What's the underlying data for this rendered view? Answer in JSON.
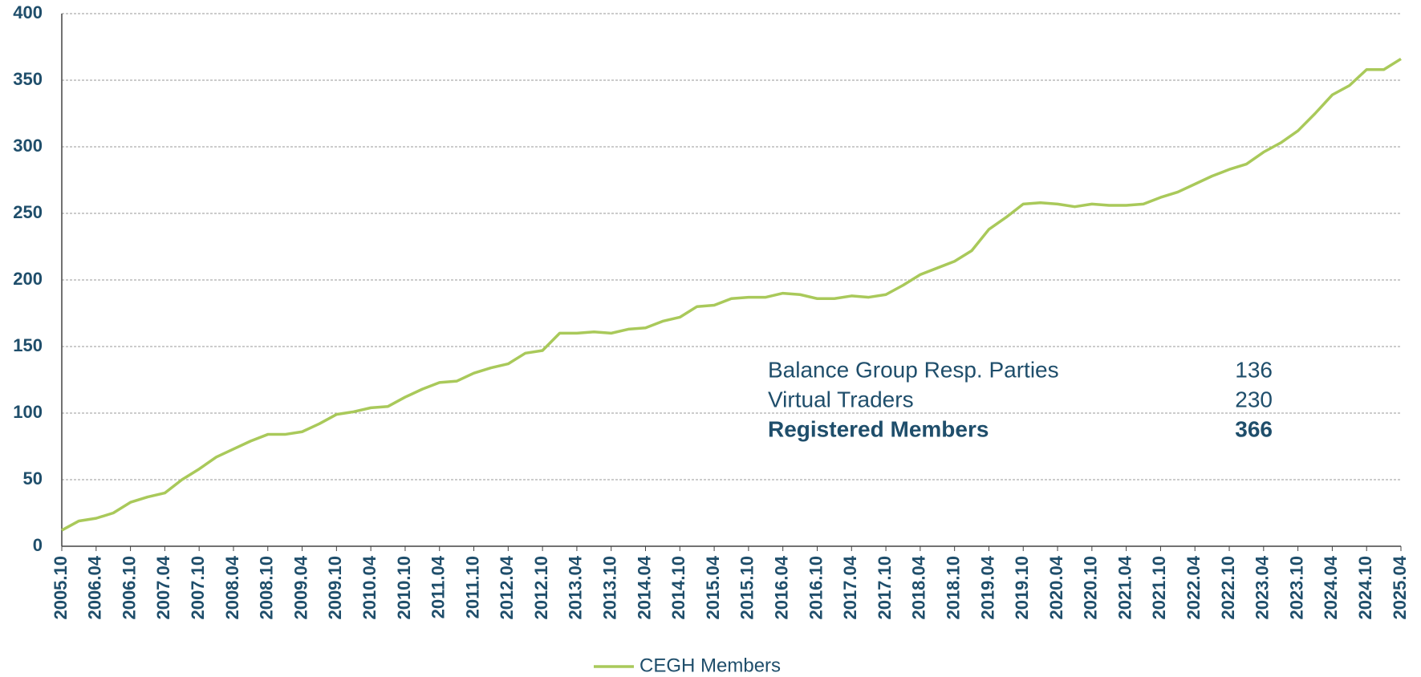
{
  "chart_data": {
    "type": "line",
    "categories": [
      "2005.10",
      null,
      "2006.04",
      null,
      "2006.10",
      null,
      "2007.04",
      null,
      "2007.10",
      null,
      "2008.04",
      null,
      "2008.10",
      null,
      "2009.04",
      null,
      "2009.10",
      null,
      "2010.04",
      null,
      "2010.10",
      null,
      "2011.04",
      null,
      "2011.10",
      null,
      "2012.04",
      null,
      "2012.10",
      null,
      "2013.04",
      null,
      "2013.10",
      null,
      "2014.04",
      null,
      "2014.10",
      null,
      "2015.04",
      null,
      "2015.10",
      null,
      "2016.04",
      null,
      "2016.10",
      null,
      "2017.04",
      null,
      "2017.10",
      null,
      "2018.04",
      null,
      "2018.10",
      null,
      "2019.04",
      null,
      "2019.10",
      null,
      "2020.04",
      null,
      "2020.10",
      null,
      "2021.04",
      null,
      "2021.10",
      null,
      "2022.04",
      null,
      "2022.10",
      null,
      "2023.04",
      null,
      "2023.10",
      null,
      "2024.04",
      null,
      "2024.10",
      null,
      "2025.04"
    ],
    "series": [
      {
        "name": "CEGH Members",
        "color": "#a9c95a",
        "values": [
          12,
          19,
          21,
          25,
          33,
          37,
          40,
          50,
          58,
          67,
          73,
          79,
          84,
          84,
          86,
          92,
          99,
          101,
          104,
          105,
          112,
          118,
          123,
          124,
          130,
          134,
          137,
          145,
          147,
          160,
          160,
          161,
          160,
          163,
          164,
          169,
          172,
          180,
          181,
          186,
          187,
          187,
          190,
          189,
          186,
          186,
          188,
          187,
          189,
          196,
          204,
          209,
          214,
          222,
          238,
          247,
          257,
          258,
          257,
          255,
          257,
          256,
          256,
          257,
          262,
          266,
          272,
          278,
          283,
          287,
          296,
          303,
          312,
          325,
          339,
          346,
          358,
          358,
          366
        ]
      }
    ],
    "ylim": [
      0,
      400
    ],
    "yticks": [
      0,
      50,
      100,
      150,
      200,
      250,
      300,
      350,
      400
    ],
    "grid": true,
    "annotations": [
      {
        "label": "Balance Group Resp. Parties",
        "value": 136
      },
      {
        "label": "Virtual Traders",
        "value": 230
      },
      {
        "label": "Registered Members",
        "value": 366
      }
    ]
  }
}
